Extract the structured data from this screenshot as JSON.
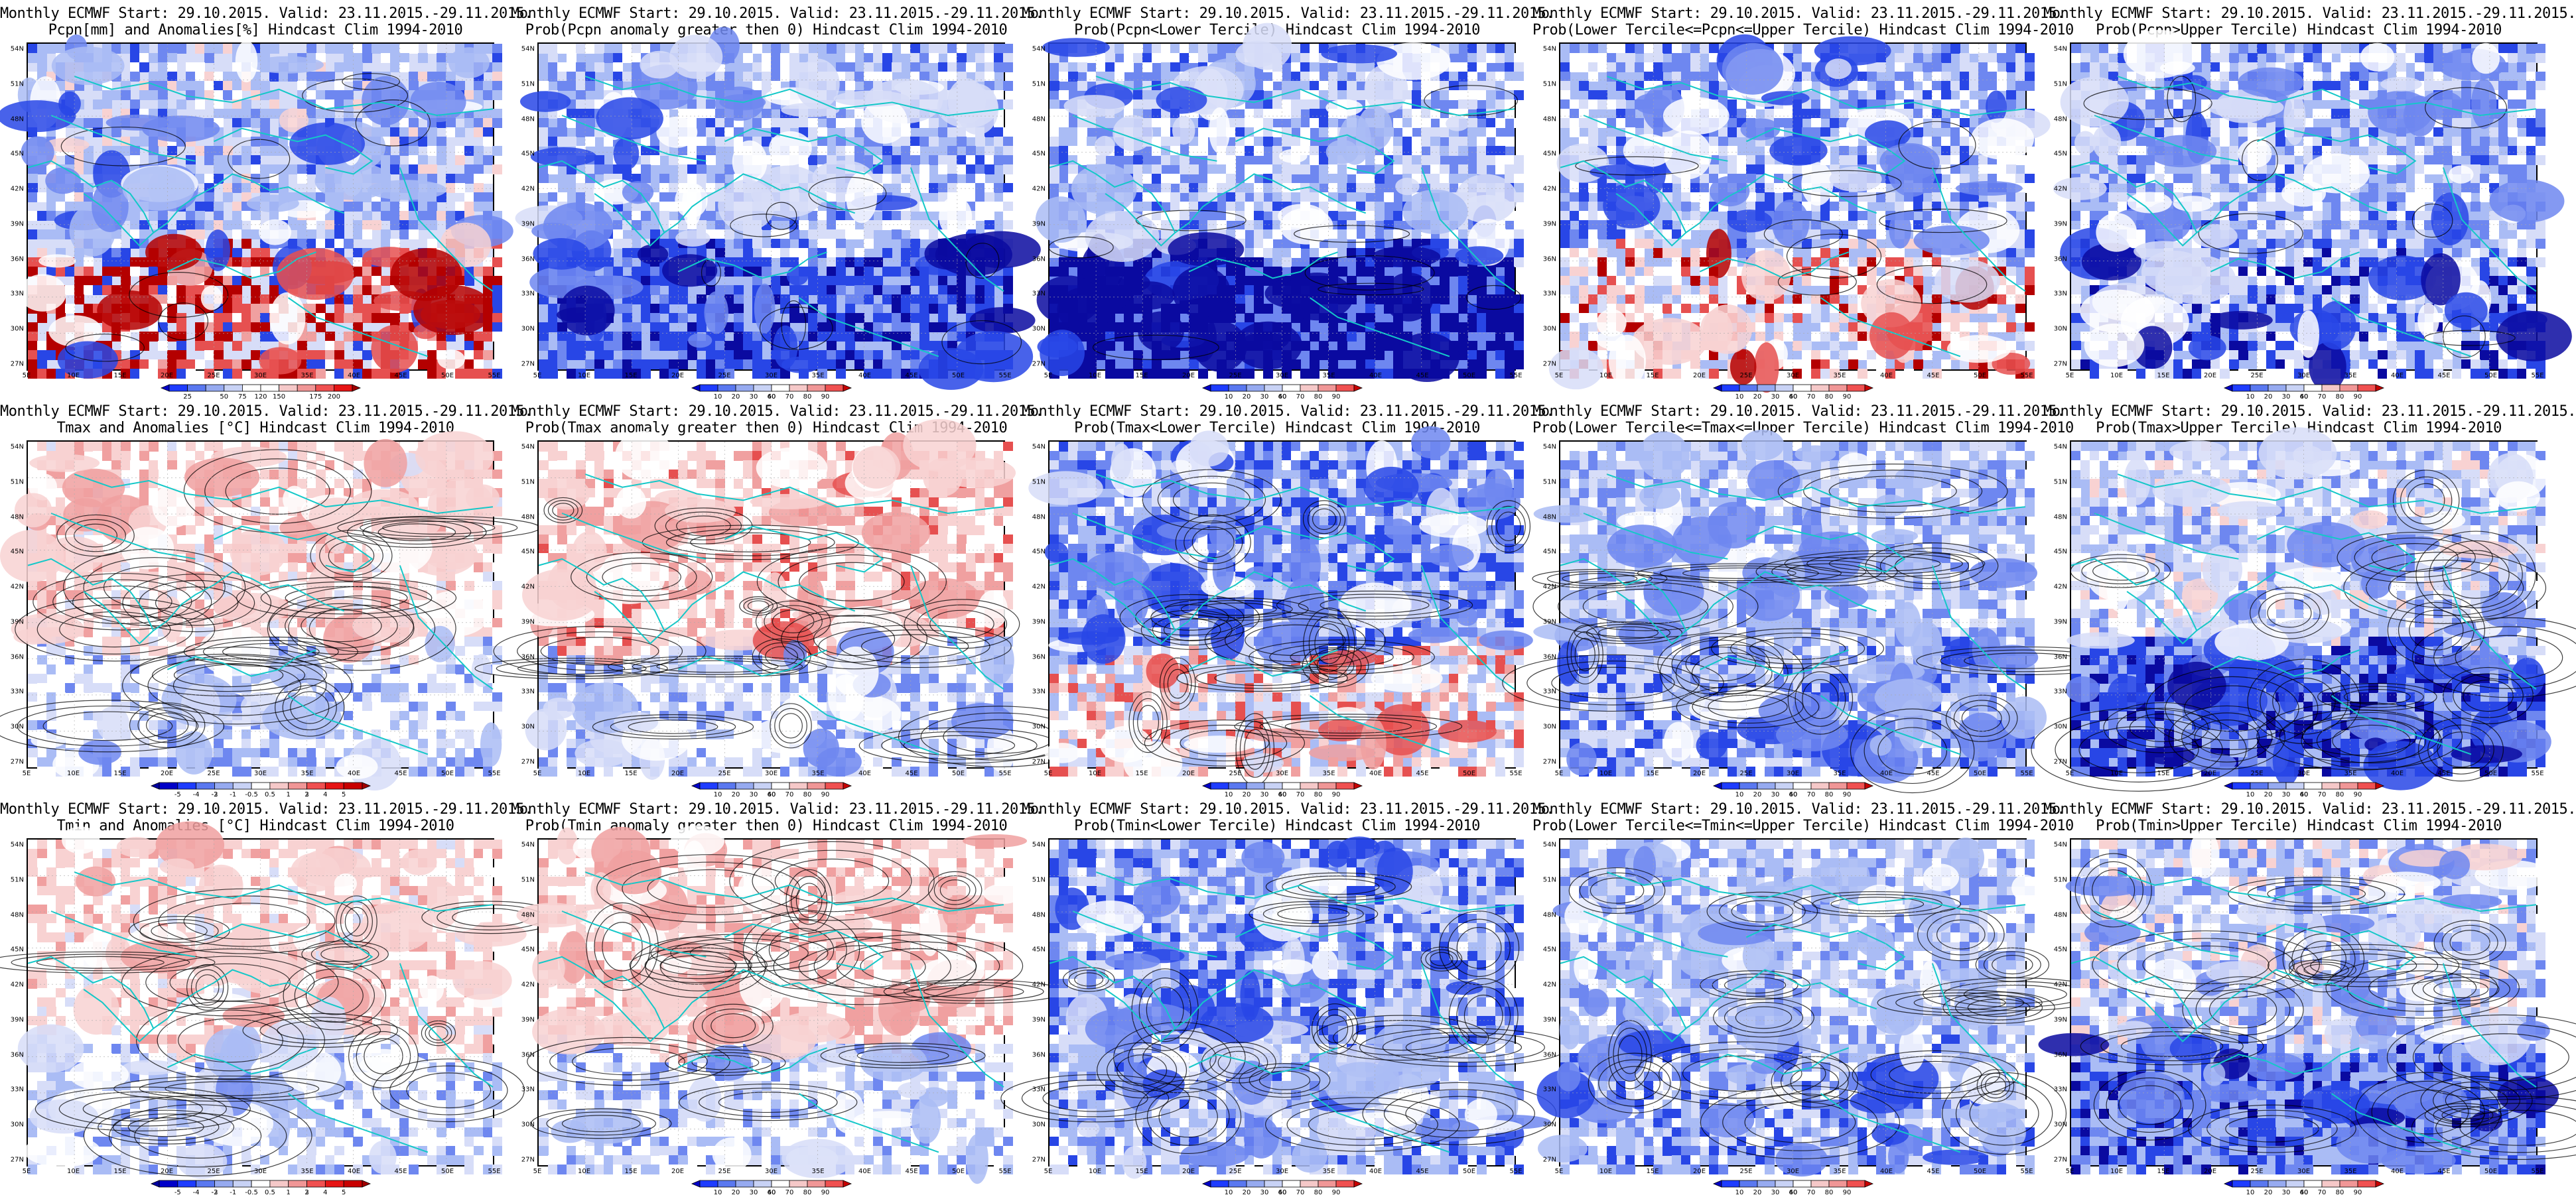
{
  "panels": [
    {
      "id": "r1c1",
      "line1": "Monthly ECMWF Start: 29.10.2015. Valid: 23.11.2015.-29.11.2015.",
      "line2": "Pcpn[mm] and Anomalies[%] Hindcast Clim 1994-2010",
      "scale": "anom_pct",
      "theme": "pcpn_anom"
    },
    {
      "id": "r1c2",
      "line1": "Monthly ECMWF Start: 29.10.2015. Valid: 23.11.2015.-29.11.2015.",
      "line2": "Prob(Pcpn anomaly greater then 0) Hindcast Clim 1994-2010",
      "scale": "prob",
      "theme": "pcpn_prob"
    },
    {
      "id": "r1c3",
      "line1": "Monthly ECMWF Start: 29.10.2015. Valid: 23.11.2015.-29.11.2015.",
      "line2": "Prob(Pcpn<Lower Tercile) Hindcast Clim 1994-2010",
      "scale": "prob",
      "theme": "pcpn_lower"
    },
    {
      "id": "r1c4",
      "line1": "Monthly ECMWF Start: 29.10.2015. Valid: 23.11.2015.-29.11.2015.",
      "line2": "Prob(Lower Tercile<=Pcpn<=Upper Tercile) Hindcast Clim 1994-2010",
      "scale": "prob",
      "theme": "pcpn_middle"
    },
    {
      "id": "r1c5",
      "line1": "Monthly ECMWF Start: 29.10.2015. Valid: 23.11.2015.-29.11.2015.",
      "line2": "Prob(Pcpn>Upper Tercile) Hindcast Clim 1994-2010",
      "scale": "prob",
      "theme": "pcpn_upper"
    },
    {
      "id": "r2c1",
      "line1": "Monthly ECMWF Start: 29.10.2015. Valid: 23.11.2015.-29.11.2015.",
      "line2": "Tmax and Anomalies [°C] Hindcast Clim 1994-2010",
      "scale": "anom_t",
      "theme": "tmax_anom"
    },
    {
      "id": "r2c2",
      "line1": "Monthly ECMWF Start: 29.10.2015. Valid: 23.11.2015.-29.11.2015.",
      "line2": "Prob(Tmax anomaly greater then 0) Hindcast Clim 1994-2010",
      "scale": "prob",
      "theme": "tmax_prob"
    },
    {
      "id": "r2c3",
      "line1": "Monthly ECMWF Start: 29.10.2015. Valid: 23.11.2015.-29.11.2015.",
      "line2": "Prob(Tmax<Lower Tercile) Hindcast Clim 1994-2010",
      "scale": "prob",
      "theme": "tmax_lower"
    },
    {
      "id": "r2c4",
      "line1": "Monthly ECMWF Start: 29.10.2015. Valid: 23.11.2015.-29.11.2015.",
      "line2": "Prob(Lower Tercile<=Tmax<=Upper Tercile) Hindcast Clim 1994-2010",
      "scale": "prob",
      "theme": "tmax_middle"
    },
    {
      "id": "r2c5",
      "line1": "Monthly ECMWF Start: 29.10.2015. Valid: 23.11.2015.-29.11.2015.",
      "line2": "Prob(Tmax>Upper Tercile) Hindcast Clim 1994-2010",
      "scale": "prob",
      "theme": "tmax_upper"
    },
    {
      "id": "r3c1",
      "line1": "Monthly ECMWF Start: 29.10.2015. Valid: 23.11.2015.-29.11.2015.",
      "line2": "Tmin and Anomalies [°C] Hindcast Clim 1994-2010",
      "scale": "anom_t",
      "theme": "tmin_anom"
    },
    {
      "id": "r3c2",
      "line1": "Monthly ECMWF Start: 29.10.2015. Valid: 23.11.2015.-29.11.2015.",
      "line2": "Prob(Tmin anomaly greater then 0) Hindcast Clim 1994-2010",
      "scale": "prob",
      "theme": "tmin_prob"
    },
    {
      "id": "r3c3",
      "line1": "Monthly ECMWF Start: 29.10.2015. Valid: 23.11.2015.-29.11.2015.",
      "line2": "Prob(Tmin<Lower Tercile) Hindcast Clim 1994-2010",
      "scale": "prob",
      "theme": "tmin_lower"
    },
    {
      "id": "r3c4",
      "line1": "Monthly ECMWF Start: 29.10.2015. Valid: 23.11.2015.-29.11.2015.",
      "line2": "Prob(Lower Tercile<=Tmin<=Upper Tercile) Hindcast Clim 1994-2010",
      "scale": "prob",
      "theme": "tmin_middle"
    },
    {
      "id": "r3c5",
      "line1": "Monthly ECMWF Start: 29.10.2015. Valid: 23.11.2015.-29.11.2015.",
      "line2": "Prob(Tmin>Upper Tercile) Hindcast Clim 1994-2010",
      "scale": "prob",
      "theme": "tmin_upper"
    }
  ],
  "axes": {
    "lat_labels": [
      "54N",
      "51N",
      "48N",
      "45N",
      "42N",
      "39N",
      "36N",
      "33N",
      "30N",
      "27N"
    ],
    "lon_labels": [
      "5E",
      "10E",
      "15E",
      "20E",
      "25E",
      "30E",
      "35E",
      "40E",
      "45E",
      "50E",
      "55E"
    ]
  },
  "colorbars": {
    "anom_pct": {
      "ticks": [
        "25",
        "50",
        "75",
        "120",
        "150",
        "175",
        "200"
      ],
      "colors": [
        "#0000c8",
        "#1e3cff",
        "#5a78f0",
        "#96aaf0",
        "#c8d2f5",
        "#ffffff",
        "#ffffff",
        "#f5c8c8",
        "#f09696",
        "#f05050",
        "#e61414",
        "#a00000"
      ]
    },
    "prob": {
      "ticks": [
        "10",
        "20",
        "30",
        "40",
        "60",
        "70",
        "80",
        "90"
      ],
      "colors": [
        "#0000c8",
        "#1e3cff",
        "#5a78f0",
        "#96aaf0",
        "#c8d2f5",
        "#ffffff",
        "#f5c8c8",
        "#f09696",
        "#f05050",
        "#c80000"
      ]
    },
    "anom_t": {
      "ticks": [
        "-5",
        "-4",
        "-3",
        "-2",
        "-1",
        "-0.5",
        "0.5",
        "1",
        "2",
        "3",
        "4",
        "5"
      ],
      "colors": [
        "#0000a0",
        "#0000c8",
        "#1e3cff",
        "#5a78f0",
        "#96aaf0",
        "#c8d2f5",
        "#ffffff",
        "#f5c8c8",
        "#f09696",
        "#f05050",
        "#e61414",
        "#c80000",
        "#a00000"
      ]
    }
  },
  "map_colors": {
    "deep_blue": "#0a0aa0",
    "blue": "#2846e6",
    "mid_blue": "#6e87f0",
    "light_blue": "#aabcf5",
    "pale_blue": "#d7ddf8",
    "white": "#ffffff",
    "pale_red": "#f8d2d2",
    "light_red": "#f0a0a0",
    "red": "#e65050",
    "dark_red": "#b40000",
    "coast": "#14c8c8",
    "contour": "#000000"
  }
}
